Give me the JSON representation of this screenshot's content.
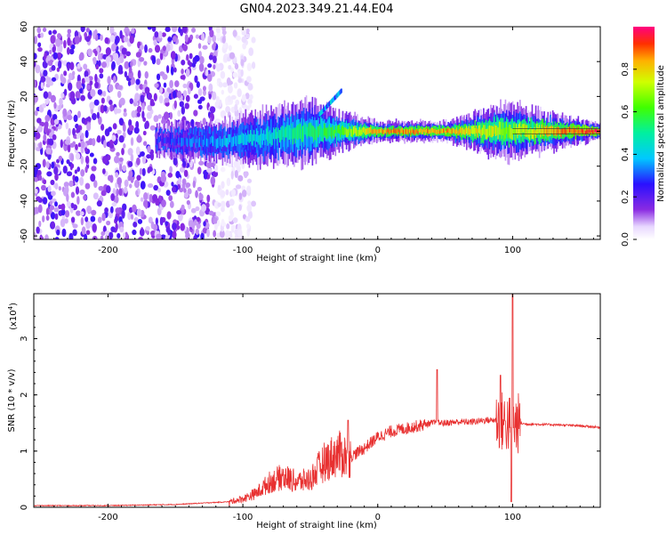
{
  "title": "GN04.2023.349.21.44.E04",
  "chart_data": [
    {
      "type": "heatmap",
      "xlabel": "Height of straight line (km)",
      "ylabel": "Frequency (Hz)",
      "xlim": [
        -255,
        165
      ],
      "ylim": [
        -62,
        60
      ],
      "xticks": [
        -200,
        -100,
        0,
        100
      ],
      "xtick_labels": [
        "-200",
        "-100",
        "0",
        "100"
      ],
      "yticks": [
        -60,
        -40,
        -20,
        0,
        20,
        40,
        60
      ],
      "ytick_labels": [
        "-60",
        "-40",
        "-20",
        "0",
        "20",
        "40",
        "60"
      ],
      "colorbar": {
        "label": "Normalized spectral amplitude",
        "range": [
          0,
          1
        ],
        "ticks": [
          0.0,
          0.2,
          0.4,
          0.6,
          0.8
        ],
        "tick_labels": [
          "0.0",
          "0.2",
          "0.4",
          "0.6",
          "0.8"
        ]
      },
      "description_points": {
        "noise_region_x": [
          -255,
          -100
        ],
        "signal_band": [
          {
            "x": -160,
            "f_center": -5,
            "halfwidth": 4,
            "amp": 0.25
          },
          {
            "x": -120,
            "f_center": -6,
            "halfwidth": 5,
            "amp": 0.35
          },
          {
            "x": -80,
            "f_center": -3,
            "halfwidth": 7,
            "amp": 0.45
          },
          {
            "x": -50,
            "f_center": 0,
            "halfwidth": 8,
            "amp": 0.55
          },
          {
            "x": -30,
            "f_center": 0,
            "halfwidth": 5,
            "amp": 0.6
          },
          {
            "x": 0,
            "f_center": 0,
            "halfwidth": 2.5,
            "amp": 0.85
          },
          {
            "x": 50,
            "f_center": 0,
            "halfwidth": 2.5,
            "amp": 0.85
          },
          {
            "x": 95,
            "f_center": 0,
            "halfwidth": 7,
            "amp": 0.7
          },
          {
            "x": 165,
            "f_center": 0,
            "halfwidth": 2,
            "amp": 0.95
          }
        ]
      }
    },
    {
      "type": "line",
      "xlabel": "Height of straight line (km)",
      "ylabel": "SNR (10 * v/v)",
      "yscale_label": "(x10",
      "yscale_exp": "4",
      "yscale_close": ")",
      "xlim": [
        -255,
        165
      ],
      "ylim": [
        0,
        3.8
      ],
      "xticks": [
        -200,
        -100,
        0,
        100
      ],
      "xtick_labels": [
        "-200",
        "-100",
        "0",
        "100"
      ],
      "yticks": [
        0,
        1,
        2,
        3
      ],
      "ytick_labels": [
        "0",
        "1",
        "2",
        "3"
      ],
      "series": [
        {
          "color": "#e83030",
          "envelope_x": [
            -255,
            -200,
            -150,
            -110,
            -100,
            -90,
            -80,
            -70,
            -60,
            -50,
            -40,
            -30,
            -20,
            -10,
            0,
            10,
            20,
            30,
            40,
            45,
            50,
            60,
            70,
            80,
            90,
            95,
            100,
            105,
            110,
            130,
            150,
            165
          ],
          "envelope_y": [
            0.03,
            0.03,
            0.05,
            0.1,
            0.15,
            0.25,
            0.45,
            0.55,
            0.45,
            0.5,
            0.8,
            0.95,
            0.9,
            1.05,
            1.25,
            1.35,
            1.4,
            1.45,
            1.5,
            1.5,
            1.5,
            1.52,
            1.52,
            1.55,
            1.55,
            1.5,
            1.45,
            1.5,
            1.48,
            1.47,
            1.45,
            1.42
          ],
          "peaks": [
            {
              "x": -22,
              "y": 1.55
            },
            {
              "x": 44,
              "y": 2.45
            },
            {
              "x": 91,
              "y": 2.35
            },
            {
              "x": 100,
              "y": 3.85
            },
            {
              "x": 99,
              "y": 0.1
            }
          ]
        }
      ]
    }
  ]
}
